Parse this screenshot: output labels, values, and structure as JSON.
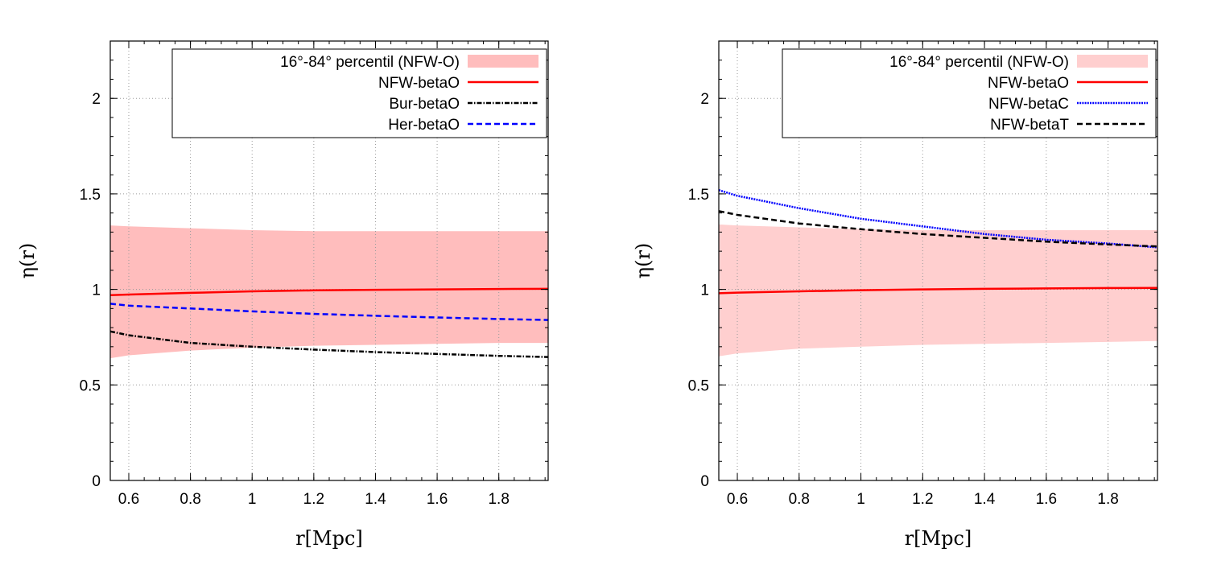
{
  "chart_data": [
    {
      "type": "line",
      "xlabel": "r[Mpc]",
      "ylabel": "η(r)",
      "xlim": [
        0.54,
        1.96
      ],
      "ylim": [
        0,
        2.3
      ],
      "xticks": [
        0.6,
        0.8,
        1,
        1.2,
        1.4,
        1.6,
        1.8
      ],
      "xtick_labels": [
        "0.6",
        "0.8",
        "1",
        "1.2",
        "1.4",
        "1.6",
        "1.8"
      ],
      "yticks": [
        0,
        0.5,
        1,
        1.5,
        2
      ],
      "ytick_labels": [
        "0",
        "0.5",
        "1",
        "1.5",
        "2"
      ],
      "grid": true,
      "legend_position": "top-right",
      "band": {
        "name": "16°-84° percentil (NFW-O)",
        "color": "#ffbdbd",
        "x": [
          0.54,
          0.6,
          0.8,
          1.0,
          1.2,
          1.4,
          1.6,
          1.8,
          1.96
        ],
        "lower": [
          0.64,
          0.655,
          0.68,
          0.695,
          0.705,
          0.71,
          0.715,
          0.72,
          0.72
        ],
        "upper": [
          1.335,
          1.33,
          1.32,
          1.31,
          1.305,
          1.305,
          1.305,
          1.305,
          1.305
        ]
      },
      "series": [
        {
          "name": "NFW-betaO",
          "color": "#ff0000",
          "dash": "solid",
          "x": [
            0.54,
            0.6,
            0.8,
            1.0,
            1.2,
            1.4,
            1.6,
            1.8,
            1.96
          ],
          "values": [
            0.97,
            0.973,
            0.982,
            0.99,
            0.995,
            0.998,
            1.0,
            1.002,
            1.003
          ]
        },
        {
          "name": "Bur-betaO",
          "color": "#000000",
          "dash": "dashdot",
          "x": [
            0.54,
            0.6,
            0.8,
            1.0,
            1.2,
            1.4,
            1.6,
            1.8,
            1.96
          ],
          "values": [
            0.78,
            0.76,
            0.72,
            0.7,
            0.685,
            0.672,
            0.662,
            0.652,
            0.646
          ]
        },
        {
          "name": "Her-betaO",
          "color": "#0000ff",
          "dash": "dashed",
          "x": [
            0.54,
            0.6,
            0.8,
            1.0,
            1.2,
            1.4,
            1.6,
            1.8,
            1.96
          ],
          "values": [
            0.925,
            0.915,
            0.9,
            0.885,
            0.872,
            0.862,
            0.853,
            0.845,
            0.84
          ]
        }
      ]
    },
    {
      "type": "line",
      "xlabel": "r[Mpc]",
      "ylabel": "η(r)",
      "xlim": [
        0.54,
        1.96
      ],
      "ylim": [
        0,
        2.3
      ],
      "xticks": [
        0.6,
        0.8,
        1,
        1.2,
        1.4,
        1.6,
        1.8
      ],
      "xtick_labels": [
        "0.6",
        "0.8",
        "1",
        "1.2",
        "1.4",
        "1.6",
        "1.8"
      ],
      "yticks": [
        0,
        0.5,
        1,
        1.5,
        2
      ],
      "ytick_labels": [
        "0",
        "0.5",
        "1",
        "1.5",
        "2"
      ],
      "grid": true,
      "legend_position": "top-right",
      "band": {
        "name": "16°-84° percentil (NFW-O)",
        "color": "#ffcfcf",
        "x": [
          0.54,
          0.6,
          0.8,
          1.0,
          1.2,
          1.4,
          1.6,
          1.8,
          1.96
        ],
        "lower": [
          0.65,
          0.665,
          0.69,
          0.7,
          0.71,
          0.715,
          0.72,
          0.725,
          0.73
        ],
        "upper": [
          1.34,
          1.335,
          1.325,
          1.315,
          1.31,
          1.31,
          1.31,
          1.31,
          1.31
        ]
      },
      "series": [
        {
          "name": "NFW-betaO",
          "color": "#ff0000",
          "dash": "solid",
          "x": [
            0.54,
            0.6,
            0.8,
            1.0,
            1.2,
            1.4,
            1.6,
            1.8,
            1.96
          ],
          "values": [
            0.98,
            0.983,
            0.99,
            0.996,
            1.0,
            1.003,
            1.005,
            1.007,
            1.008
          ]
        },
        {
          "name": "NFW-betaC",
          "color": "#0000ff",
          "dash": "dotted",
          "x": [
            0.54,
            0.6,
            0.8,
            1.0,
            1.2,
            1.4,
            1.6,
            1.8,
            1.96
          ],
          "values": [
            1.52,
            1.49,
            1.425,
            1.37,
            1.33,
            1.29,
            1.26,
            1.24,
            1.22
          ]
        },
        {
          "name": "NFW-betaT",
          "color": "#000000",
          "dash": "dashed",
          "x": [
            0.54,
            0.6,
            0.8,
            1.0,
            1.2,
            1.4,
            1.6,
            1.8,
            1.96
          ],
          "values": [
            1.41,
            1.39,
            1.345,
            1.315,
            1.29,
            1.27,
            1.25,
            1.235,
            1.225
          ]
        }
      ]
    }
  ]
}
